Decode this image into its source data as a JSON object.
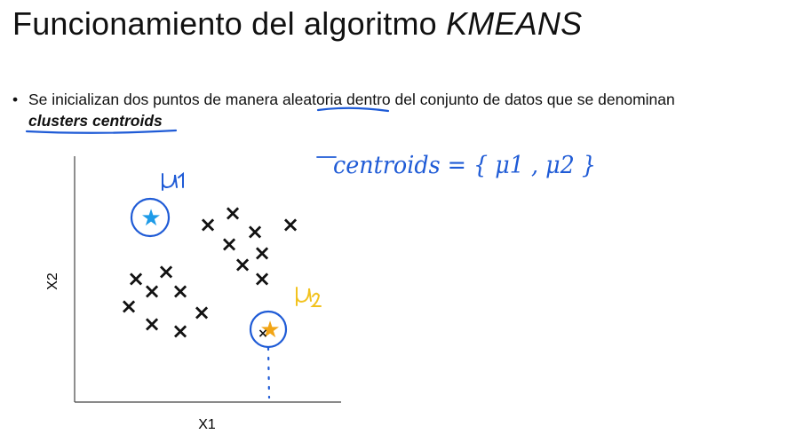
{
  "slide": {
    "title_main": "Funcionamiento del algoritmo ",
    "title_emph": "KMEANS",
    "bullet_marker": "•",
    "bullet_line1_a": "Se inicializan dos puntos de manera ",
    "bullet_line1_b": "aleatoria",
    "bullet_line1_c": " dentro del conjunto de datos que se denominan",
    "bullet_line2": "clusters centroids"
  },
  "plot": {
    "xlabel": "X1",
    "ylabel": "X2",
    "points_marker": "×",
    "centroid_marker": "★",
    "point_count": 22,
    "centroids": [
      {
        "label": "μ1",
        "color": "#1e9be8"
      },
      {
        "label": "μ2",
        "color": "#f2a516"
      }
    ]
  },
  "handwriting": {
    "text": "centroids = { μ1 , μ2 }",
    "ink_color": "#1f5bd6"
  },
  "colors": {
    "ink_blue": "#1f5bd6",
    "star_blue": "#1e9be8",
    "star_orange": "#f2a516",
    "mu2_yellow": "#f2c21e"
  }
}
